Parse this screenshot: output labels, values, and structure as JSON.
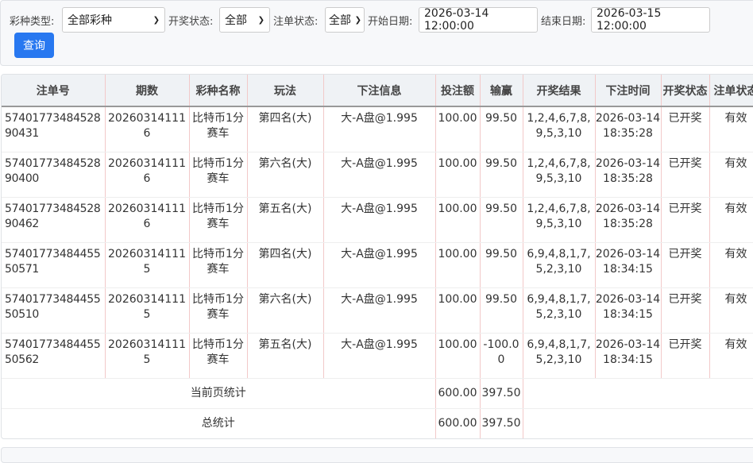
{
  "filters": {
    "lottery_type_label": "彩种类型:",
    "lottery_type_value": "全部彩种",
    "draw_status_label": "开奖状态:",
    "draw_status_value": "全部",
    "bet_status_label": "注单状态:",
    "bet_status_value": "全部",
    "start_date_label": "开始日期:",
    "start_date_value": "2026-03-14 12:00:00",
    "end_date_label": "结束日期:",
    "end_date_value": "2026-03-15 12:00:00",
    "search_button": "查询"
  },
  "table": {
    "headers": [
      "注单号",
      "期数",
      "彩种名称",
      "玩法",
      "下注信息",
      "投注额",
      "输赢",
      "开奖结果",
      "下注时间",
      "开奖状态",
      "注单状态"
    ],
    "rows": [
      [
        "5740177348452890431",
        "202603141116",
        "比特币1分赛车",
        "第四名(大)",
        "大-A盘@1.995",
        "100.00",
        "99.50",
        "1,2,4,6,7,8,9,5,3,10",
        "2026-03-14 18:35:28",
        "已开奖",
        "有效"
      ],
      [
        "5740177348452890400",
        "202603141116",
        "比特币1分赛车",
        "第六名(大)",
        "大-A盘@1.995",
        "100.00",
        "99.50",
        "1,2,4,6,7,8,9,5,3,10",
        "2026-03-14 18:35:28",
        "已开奖",
        "有效"
      ],
      [
        "5740177348452890462",
        "202603141116",
        "比特币1分赛车",
        "第五名(大)",
        "大-A盘@1.995",
        "100.00",
        "99.50",
        "1,2,4,6,7,8,9,5,3,10",
        "2026-03-14 18:35:28",
        "已开奖",
        "有效"
      ],
      [
        "5740177348445550571",
        "202603141115",
        "比特币1分赛车",
        "第四名(大)",
        "大-A盘@1.995",
        "100.00",
        "99.50",
        "6,9,4,8,1,7,5,2,3,10",
        "2026-03-14 18:34:15",
        "已开奖",
        "有效"
      ],
      [
        "5740177348445550510",
        "202603141115",
        "比特币1分赛车",
        "第六名(大)",
        "大-A盘@1.995",
        "100.00",
        "99.50",
        "6,9,4,8,1,7,5,2,3,10",
        "2026-03-14 18:34:15",
        "已开奖",
        "有效"
      ],
      [
        "5740177348445550562",
        "202603141115",
        "比特币1分赛车",
        "第五名(大)",
        "大-A盘@1.995",
        "100.00",
        "-100.00",
        "6,9,4,8,1,7,5,2,3,10",
        "2026-03-14 18:34:15",
        "已开奖",
        "有效"
      ]
    ],
    "page_summary": {
      "label": "当前页统计",
      "amount": "600.00",
      "win": "397.50"
    },
    "total_summary": {
      "label": "总统计",
      "amount": "600.00",
      "win": "397.50"
    }
  }
}
